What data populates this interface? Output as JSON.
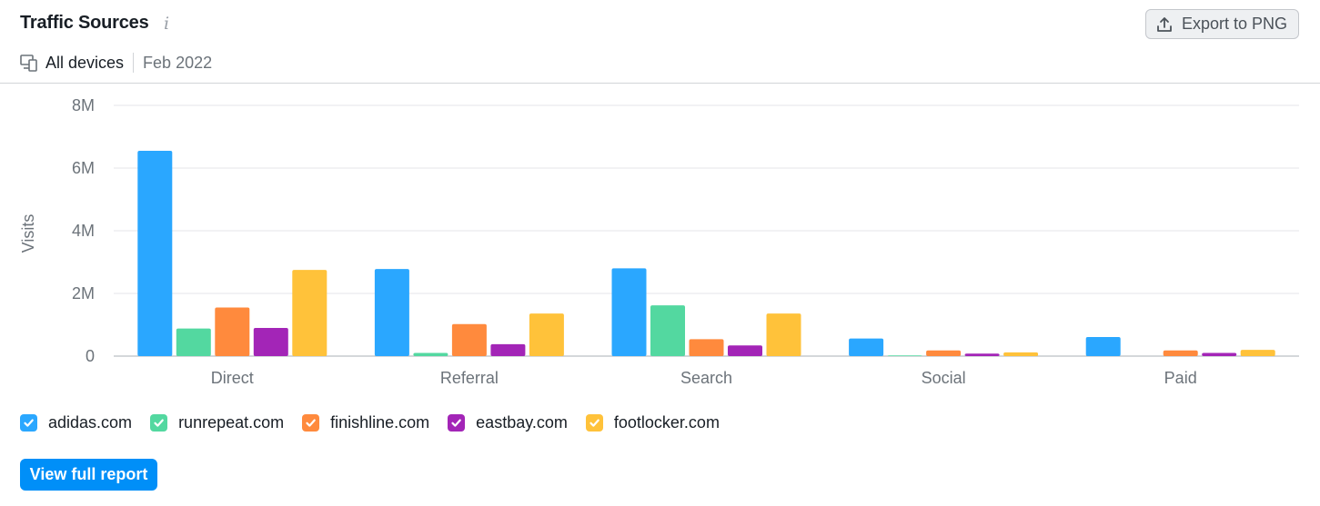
{
  "header": {
    "title": "Traffic Sources",
    "info_icon": "info-icon",
    "export_label": "Export to PNG",
    "device_label": "All devices",
    "date_label": "Feb 2022"
  },
  "legend": [
    {
      "label": "adidas.com",
      "color": "#2aa7ff",
      "checked": true
    },
    {
      "label": "runrepeat.com",
      "color": "#53d8a0",
      "checked": true
    },
    {
      "label": "finishline.com",
      "color": "#ff8a3d",
      "checked": true
    },
    {
      "label": "eastbay.com",
      "color": "#a325b7",
      "checked": true
    },
    {
      "label": "footlocker.com",
      "color": "#ffc23a",
      "checked": true
    }
  ],
  "footer": {
    "report_label": "View full report"
  },
  "chart_data": {
    "type": "bar",
    "ylabel": "Visits",
    "ylim": [
      0,
      8000000
    ],
    "yticks": [
      0,
      2000000,
      4000000,
      6000000,
      8000000
    ],
    "ytick_labels": [
      "0",
      "2M",
      "4M",
      "6M",
      "8M"
    ],
    "grid": true,
    "categories": [
      "Direct",
      "Referral",
      "Search",
      "Social",
      "Paid"
    ],
    "series": [
      {
        "name": "adidas.com",
        "color": "#2aa7ff",
        "values": [
          6550000,
          2780000,
          2800000,
          560000,
          610000
        ]
      },
      {
        "name": "runrepeat.com",
        "color": "#53d8a0",
        "values": [
          880000,
          100000,
          1620000,
          20000,
          0
        ]
      },
      {
        "name": "finishline.com",
        "color": "#ff8a3d",
        "values": [
          1550000,
          1020000,
          540000,
          180000,
          180000
        ]
      },
      {
        "name": "eastbay.com",
        "color": "#a325b7",
        "values": [
          900000,
          380000,
          340000,
          80000,
          100000
        ]
      },
      {
        "name": "footlocker.com",
        "color": "#ffc23a",
        "values": [
          2750000,
          1360000,
          1360000,
          120000,
          200000
        ]
      }
    ]
  }
}
